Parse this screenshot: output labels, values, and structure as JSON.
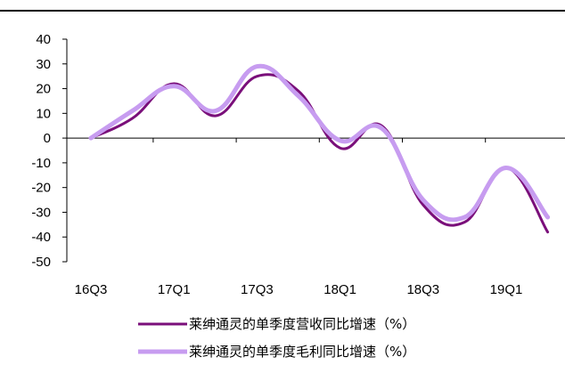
{
  "chart_data": {
    "type": "line",
    "title": "",
    "xlabel": "",
    "ylabel": "",
    "ylim": [
      -50,
      40
    ],
    "yticks": [
      40,
      30,
      20,
      10,
      0,
      -10,
      -20,
      -30,
      -40,
      -50
    ],
    "categories": [
      "16Q3",
      "16Q4",
      "17Q1",
      "17Q2",
      "17Q3",
      "17Q4",
      "18Q1",
      "18Q2",
      "18Q3",
      "18Q4",
      "19Q1",
      "19Q2"
    ],
    "category_labels": [
      "16Q3",
      "",
      "17Q1",
      "",
      "17Q3",
      "",
      "18Q1",
      "",
      "18Q3",
      "",
      "19Q1",
      ""
    ],
    "grid": false,
    "legend": "bottom",
    "series": [
      {
        "name": "莱绅通灵的单季度营收同比增速（%）",
        "color": "#7a0f7a",
        "values": [
          0,
          8,
          22,
          9,
          25,
          19,
          -4,
          5,
          -27,
          -34,
          -12,
          -38
        ]
      },
      {
        "name": "莱绅通灵的单季度毛利同比增速（%）",
        "color": "#c79cf0",
        "values": [
          0,
          11,
          21,
          11,
          29,
          17,
          -1,
          4,
          -25,
          -32,
          -12,
          -32
        ]
      }
    ]
  }
}
